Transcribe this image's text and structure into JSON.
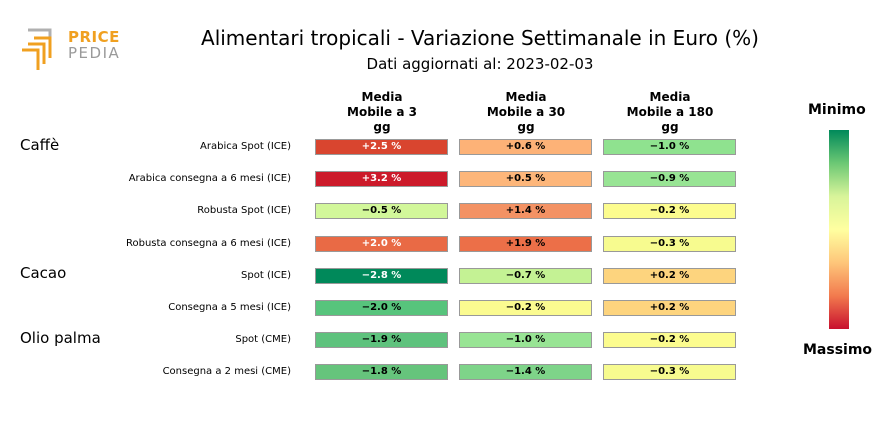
{
  "logo": {
    "word1": "PRICE",
    "word2": "PEDIA"
  },
  "title": "Alimentari tropicali - Variazione Settimanale in Euro (%)",
  "subtitle": "Dati aggiornati al: 2023-02-03",
  "columns": [
    {
      "l1": "Media",
      "l2": "Mobile a 3",
      "l3": "gg"
    },
    {
      "l1": "Media",
      "l2": "Mobile a 30",
      "l3": "gg"
    },
    {
      "l1": "Media",
      "l2": "Mobile a 180",
      "l3": "gg"
    }
  ],
  "groups": [
    "Caffè",
    "Cacao",
    "Olio palma"
  ],
  "rows": [
    {
      "label": "Arabica Spot (ICE)",
      "values": [
        "+2.5 %",
        "+0.6 %",
        "−1.0 %"
      ],
      "colors": [
        "#d9452f",
        "#fdb277",
        "#8fe28f"
      ],
      "text_colors": [
        "#ffffff",
        "#000000",
        "#000000"
      ]
    },
    {
      "label": "Arabica consegna a 6 mesi (ICE)",
      "values": [
        "+3.2 %",
        "+0.5 %",
        "−0.9 %"
      ],
      "colors": [
        "#cc1a2a",
        "#fdb67a",
        "#98e494"
      ],
      "text_colors": [
        "#ffffff",
        "#000000",
        "#000000"
      ]
    },
    {
      "label": "Robusta Spot (ICE)",
      "values": [
        "−0.5 %",
        "+1.4 %",
        "−0.2 %"
      ],
      "colors": [
        "#d2f79a",
        "#f39264",
        "#fcfc8e"
      ],
      "text_colors": [
        "#000000",
        "#000000",
        "#000000"
      ]
    },
    {
      "label": "Robusta consegna a 6 mesi (ICE)",
      "values": [
        "+2.0 %",
        "+1.9 %",
        "−0.3 %"
      ],
      "colors": [
        "#e96a45",
        "#ec6f48",
        "#f7fb8f"
      ],
      "text_colors": [
        "#ffffff",
        "#000000",
        "#000000"
      ]
    },
    {
      "label": "Spot (ICE)",
      "values": [
        "−2.8 %",
        "−0.7 %",
        "+0.2 %"
      ],
      "colors": [
        "#00895a",
        "#c4f294",
        "#fdd47e"
      ],
      "text_colors": [
        "#ffffff",
        "#000000",
        "#000000"
      ]
    },
    {
      "label": "Consegna a 5 mesi (ICE)",
      "values": [
        "−2.0 %",
        "−0.2 %",
        "+0.2 %"
      ],
      "colors": [
        "#57c47c",
        "#fbfb90",
        "#fdd47e"
      ],
      "text_colors": [
        "#000000",
        "#000000",
        "#000000"
      ]
    },
    {
      "label": "Spot (CME)",
      "values": [
        "−1.9 %",
        "−1.0 %",
        "−0.2 %"
      ],
      "colors": [
        "#5ec27d",
        "#98e494",
        "#fcfc8e"
      ],
      "text_colors": [
        "#000000",
        "#000000",
        "#000000"
      ]
    },
    {
      "label": "Consegna a 2 mesi (CME)",
      "values": [
        "−1.8 %",
        "−1.4 %",
        "−0.3 %"
      ],
      "colors": [
        "#66c47c",
        "#7ed489",
        "#f7fb8f"
      ],
      "text_colors": [
        "#000000",
        "#000000",
        "#000000"
      ]
    }
  ],
  "legend": {
    "top": "Minimo",
    "bottom": "Massimo",
    "colors": [
      "#00895a",
      "#ffffa0",
      "#c8102e"
    ]
  }
}
